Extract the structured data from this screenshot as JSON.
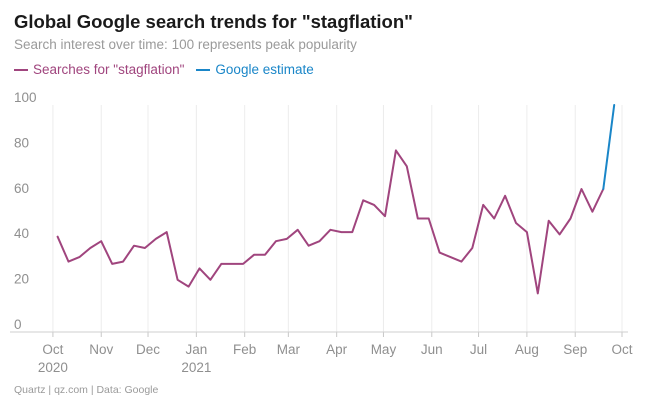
{
  "chart_data": {
    "type": "line",
    "title": "Global Google search trends for \"stagflation\"",
    "subtitle": "Search interest over time: 100 represents peak popularity",
    "xlabel": "",
    "ylabel": "",
    "ylim": [
      0,
      100
    ],
    "yticks": [
      0,
      20,
      40,
      60,
      80,
      100
    ],
    "xlim": [
      "2020-09-24",
      "2021-10-01"
    ],
    "xticks": [
      {
        "date": "2020-10-01",
        "label": "Oct",
        "sublabel": "2020"
      },
      {
        "date": "2020-11-01",
        "label": "Nov",
        "sublabel": ""
      },
      {
        "date": "2020-12-01",
        "label": "Dec",
        "sublabel": ""
      },
      {
        "date": "2021-01-01",
        "label": "Jan",
        "sublabel": "2021"
      },
      {
        "date": "2021-02-01",
        "label": "Feb",
        "sublabel": ""
      },
      {
        "date": "2021-03-01",
        "label": "Mar",
        "sublabel": ""
      },
      {
        "date": "2021-04-01",
        "label": "Apr",
        "sublabel": ""
      },
      {
        "date": "2021-05-01",
        "label": "May",
        "sublabel": ""
      },
      {
        "date": "2021-06-01",
        "label": "Jun",
        "sublabel": ""
      },
      {
        "date": "2021-07-01",
        "label": "Jul",
        "sublabel": ""
      },
      {
        "date": "2021-08-01",
        "label": "Aug",
        "sublabel": ""
      },
      {
        "date": "2021-09-01",
        "label": "Sep",
        "sublabel": ""
      },
      {
        "date": "2021-10-01",
        "label": "Oct",
        "sublabel": ""
      }
    ],
    "grid": "vertical",
    "legend_position": "top-left",
    "series": [
      {
        "name": "Searches for \"stagflation\"",
        "color": "#a0457e",
        "x": [
          "2020-10-04",
          "2020-10-11",
          "2020-10-18",
          "2020-10-25",
          "2020-11-01",
          "2020-11-08",
          "2020-11-15",
          "2020-11-22",
          "2020-11-29",
          "2020-12-06",
          "2020-12-13",
          "2020-12-20",
          "2020-12-27",
          "2021-01-03",
          "2021-01-10",
          "2021-01-17",
          "2021-01-24",
          "2021-01-31",
          "2021-02-07",
          "2021-02-14",
          "2021-02-21",
          "2021-02-28",
          "2021-03-07",
          "2021-03-14",
          "2021-03-21",
          "2021-03-28",
          "2021-04-04",
          "2021-04-11",
          "2021-04-18",
          "2021-04-25",
          "2021-05-02",
          "2021-05-09",
          "2021-05-16",
          "2021-05-23",
          "2021-05-30",
          "2021-06-06",
          "2021-06-13",
          "2021-06-20",
          "2021-06-27",
          "2021-07-04",
          "2021-07-11",
          "2021-07-18",
          "2021-07-25",
          "2021-08-01",
          "2021-08-08",
          "2021-08-15",
          "2021-08-22",
          "2021-08-29",
          "2021-09-05",
          "2021-09-12",
          "2021-09-19"
        ],
        "values": [
          42,
          31,
          33,
          37,
          40,
          30,
          31,
          38,
          37,
          41,
          44,
          23,
          20,
          28,
          23,
          30,
          30,
          30,
          34,
          34,
          40,
          41,
          45,
          38,
          40,
          45,
          44,
          44,
          58,
          56,
          51,
          80,
          73,
          50,
          50,
          35,
          33,
          31,
          37,
          56,
          50,
          60,
          48,
          44,
          17,
          49,
          43,
          50,
          63,
          53,
          63
        ]
      },
      {
        "name": "Google estimate",
        "color": "#1a86c8",
        "x": [
          "2021-09-19",
          "2021-09-26"
        ],
        "values": [
          63,
          100
        ]
      }
    ]
  },
  "footer": "Quartz | qz.com | Data: Google"
}
